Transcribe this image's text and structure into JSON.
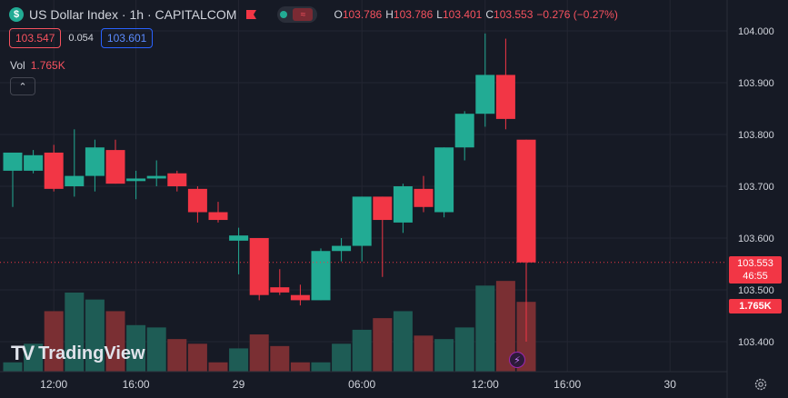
{
  "header": {
    "symbol_icon": "dollar-sign-icon",
    "symbol_glyph": "$",
    "title": "US Dollar Index · 1h · CAPITALCOM",
    "toggle_wave_glyph": "≈",
    "ohlc": [
      {
        "key": "O",
        "value": "103.786"
      },
      {
        "key": "H",
        "value": "103.786"
      },
      {
        "key": "L",
        "value": "103.401"
      },
      {
        "key": "C",
        "value": "103.553"
      }
    ],
    "change": "−0.276 (−0.27%)"
  },
  "trade": {
    "sell_price": "103.547",
    "spread": "0.054",
    "buy_price": "103.601"
  },
  "volume_legend": {
    "label": "Vol",
    "value": "1.765K"
  },
  "collapse_glyph": "⌃",
  "watermark": {
    "logo": "TV",
    "text": "TradingView"
  },
  "price_scale": {
    "ticks": [
      "104.000",
      "103.900",
      "103.800",
      "103.700",
      "103.600",
      "103.500",
      "103.400"
    ],
    "last_price": "103.553",
    "countdown": "46:55",
    "last_volume": "1.765K"
  },
  "time_axis": {
    "labels": [
      "12:00",
      "16:00",
      "29",
      "06:00",
      "12:00",
      "16:00",
      "30"
    ]
  },
  "bolt_glyph": "⚡",
  "colors": {
    "up": "#22ab94",
    "down": "#f23645",
    "vol_up": "#1e5c55",
    "vol_down": "#7a2f33",
    "background": "#161a25",
    "grid": "#232632"
  },
  "chart_data": {
    "type": "candlestick",
    "y_range": [
      103.35,
      104.03
    ],
    "candles": [
      {
        "o": 103.73,
        "h": 103.765,
        "l": 103.66,
        "c": 103.765,
        "v": 8
      },
      {
        "o": 103.73,
        "h": 103.77,
        "l": 103.725,
        "c": 103.76,
        "v": 24
      },
      {
        "o": 103.765,
        "h": 103.78,
        "l": 103.69,
        "c": 103.695,
        "v": 52
      },
      {
        "o": 103.7,
        "h": 103.81,
        "l": 103.68,
        "c": 103.72,
        "v": 68
      },
      {
        "o": 103.72,
        "h": 103.79,
        "l": 103.69,
        "c": 103.775,
        "v": 62
      },
      {
        "o": 103.77,
        "h": 103.79,
        "l": 103.705,
        "c": 103.705,
        "v": 52
      },
      {
        "o": 103.71,
        "h": 103.73,
        "l": 103.675,
        "c": 103.715,
        "v": 40
      },
      {
        "o": 103.715,
        "h": 103.75,
        "l": 103.7,
        "c": 103.72,
        "v": 38
      },
      {
        "o": 103.725,
        "h": 103.73,
        "l": 103.69,
        "c": 103.7,
        "v": 28
      },
      {
        "o": 103.695,
        "h": 103.7,
        "l": 103.63,
        "c": 103.65,
        "v": 24
      },
      {
        "o": 103.65,
        "h": 103.67,
        "l": 103.63,
        "c": 103.635,
        "v": 8
      },
      {
        "o": 103.595,
        "h": 103.62,
        "l": 103.53,
        "c": 103.605,
        "v": 20
      },
      {
        "o": 103.6,
        "h": 103.6,
        "l": 103.48,
        "c": 103.49,
        "v": 32
      },
      {
        "o": 103.505,
        "h": 103.54,
        "l": 103.49,
        "c": 103.495,
        "v": 22
      },
      {
        "o": 103.49,
        "h": 103.51,
        "l": 103.47,
        "c": 103.48,
        "v": 8
      },
      {
        "o": 103.48,
        "h": 103.58,
        "l": 103.48,
        "c": 103.575,
        "v": 8
      },
      {
        "o": 103.575,
        "h": 103.6,
        "l": 103.555,
        "c": 103.585,
        "v": 24
      },
      {
        "o": 103.585,
        "h": 103.68,
        "l": 103.555,
        "c": 103.68,
        "v": 36
      },
      {
        "o": 103.68,
        "h": 103.68,
        "l": 103.525,
        "c": 103.635,
        "v": 46
      },
      {
        "o": 103.63,
        "h": 103.705,
        "l": 103.61,
        "c": 103.7,
        "v": 52
      },
      {
        "o": 103.695,
        "h": 103.72,
        "l": 103.65,
        "c": 103.66,
        "v": 31
      },
      {
        "o": 103.65,
        "h": 103.775,
        "l": 103.64,
        "c": 103.775,
        "v": 28
      },
      {
        "o": 103.775,
        "h": 103.845,
        "l": 103.75,
        "c": 103.84,
        "v": 38
      },
      {
        "o": 103.84,
        "h": 103.995,
        "l": 103.815,
        "c": 103.915,
        "v": 74
      },
      {
        "o": 103.915,
        "h": 103.985,
        "l": 103.81,
        "c": 103.83,
        "v": 78
      },
      {
        "o": 103.79,
        "h": 103.79,
        "l": 103.4,
        "c": 103.553,
        "v": 60
      }
    ]
  }
}
